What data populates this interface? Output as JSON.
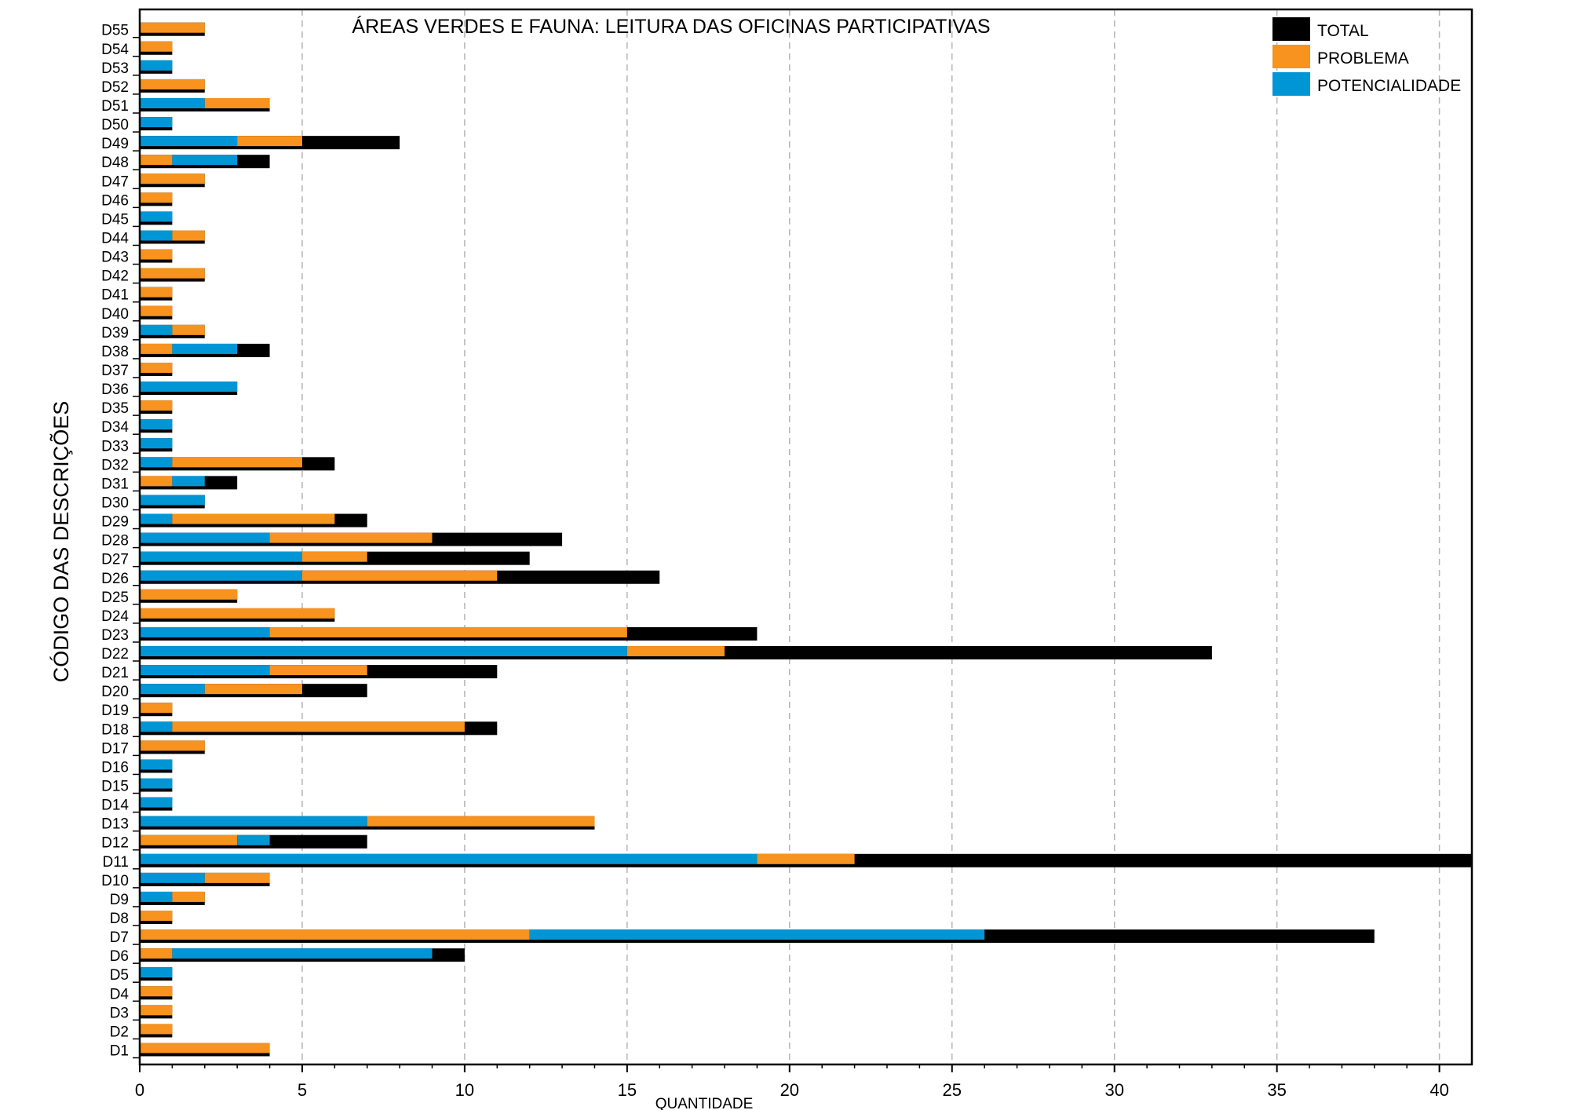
{
  "chart_data": {
    "type": "bar",
    "orientation": "horizontal",
    "title": "ÁREAS VERDES E FAUNA: LEITURA DAS OFICINAS PARTICIPATIVAS",
    "xlabel": "QUANTIDADE",
    "ylabel": "CÓDIGO DAS DESCRIÇÕES",
    "xlim": [
      0,
      41
    ],
    "xticks": [
      0,
      5,
      10,
      15,
      20,
      25,
      30,
      35,
      40
    ],
    "grid": "vertical-dashed",
    "legend_position": "top-right",
    "colors": {
      "TOTAL": "#000000",
      "PROBLEMA": "#F7931E",
      "POTENCIALIDADE": "#0096D6"
    },
    "legend": [
      "TOTAL",
      "PROBLEMA",
      "POTENCIALIDADE"
    ],
    "categories": [
      "D1",
      "D2",
      "D3",
      "D4",
      "D5",
      "D6",
      "D7",
      "D8",
      "D9",
      "D10",
      "D11",
      "D12",
      "D13",
      "D14",
      "D15",
      "D16",
      "D17",
      "D18",
      "D19",
      "D20",
      "D21",
      "D22",
      "D23",
      "D24",
      "D25",
      "D26",
      "D27",
      "D28",
      "D29",
      "D30",
      "D31",
      "D32",
      "D33",
      "D34",
      "D35",
      "D36",
      "D37",
      "D38",
      "D39",
      "D40",
      "D41",
      "D42",
      "D43",
      "D44",
      "D45",
      "D46",
      "D47",
      "D48",
      "D49",
      "D50",
      "D51",
      "D52",
      "D53",
      "D54",
      "D55"
    ],
    "series": [
      {
        "name": "TOTAL",
        "values": [
          4,
          1,
          1,
          1,
          1,
          10,
          38,
          1,
          2,
          4,
          41,
          7,
          14,
          1,
          1,
          1,
          2,
          11,
          1,
          7,
          11,
          33,
          19,
          6,
          3,
          16,
          12,
          13,
          7,
          2,
          3,
          6,
          1,
          1,
          1,
          3,
          1,
          4,
          2,
          1,
          1,
          2,
          1,
          2,
          1,
          1,
          2,
          4,
          8,
          1,
          4,
          2,
          1,
          1,
          2
        ]
      },
      {
        "name": "PROBLEMA",
        "values": [
          4,
          1,
          1,
          1,
          0,
          1,
          12,
          1,
          1,
          2,
          3,
          3,
          7,
          0,
          0,
          0,
          2,
          9,
          1,
          3,
          3,
          3,
          11,
          6,
          3,
          6,
          2,
          5,
          5,
          0,
          1,
          4,
          0,
          0,
          1,
          0,
          1,
          1,
          1,
          1,
          1,
          2,
          1,
          1,
          0,
          1,
          2,
          1,
          2,
          0,
          2,
          2,
          0,
          1,
          2
        ]
      },
      {
        "name": "POTENCIALIDADE",
        "values": [
          0,
          0,
          0,
          0,
          1,
          8,
          14,
          0,
          1,
          2,
          19,
          1,
          7,
          1,
          1,
          1,
          0,
          1,
          0,
          2,
          4,
          15,
          4,
          0,
          0,
          5,
          5,
          4,
          1,
          2,
          1,
          1,
          1,
          1,
          0,
          3,
          0,
          2,
          1,
          0,
          0,
          0,
          0,
          1,
          1,
          0,
          0,
          2,
          3,
          1,
          2,
          0,
          1,
          0,
          0
        ]
      }
    ],
    "segment_order": {
      "D1": [
        "PROBLEMA"
      ],
      "D2": [
        "PROBLEMA"
      ],
      "D3": [
        "PROBLEMA"
      ],
      "D4": [
        "PROBLEMA"
      ],
      "D5": [
        "POTENCIALIDADE"
      ],
      "D6": [
        "PROBLEMA",
        "POTENCIALIDADE"
      ],
      "D7": [
        "PROBLEMA",
        "POTENCIALIDADE"
      ],
      "D8": [
        "PROBLEMA"
      ],
      "D9": [
        "POTENCIALIDADE",
        "PROBLEMA"
      ],
      "D10": [
        "POTENCIALIDADE",
        "PROBLEMA"
      ],
      "D11": [
        "POTENCIALIDADE",
        "PROBLEMA"
      ],
      "D12": [
        "PROBLEMA",
        "POTENCIALIDADE"
      ],
      "D13": [
        "POTENCIALIDADE",
        "PROBLEMA"
      ],
      "D14": [
        "POTENCIALIDADE"
      ],
      "D15": [
        "POTENCIALIDADE"
      ],
      "D16": [
        "POTENCIALIDADE"
      ],
      "D17": [
        "PROBLEMA"
      ],
      "D18": [
        "POTENCIALIDADE",
        "PROBLEMA"
      ],
      "D19": [
        "PROBLEMA"
      ],
      "D20": [
        "POTENCIALIDADE",
        "PROBLEMA"
      ],
      "D21": [
        "POTENCIALIDADE",
        "PROBLEMA"
      ],
      "D22": [
        "POTENCIALIDADE",
        "PROBLEMA"
      ],
      "D23": [
        "POTENCIALIDADE",
        "PROBLEMA"
      ],
      "D24": [
        "PROBLEMA"
      ],
      "D25": [
        "PROBLEMA"
      ],
      "D26": [
        "POTENCIALIDADE",
        "PROBLEMA"
      ],
      "D27": [
        "POTENCIALIDADE",
        "PROBLEMA"
      ],
      "D28": [
        "POTENCIALIDADE",
        "PROBLEMA"
      ],
      "D29": [
        "POTENCIALIDADE",
        "PROBLEMA"
      ],
      "D30": [
        "POTENCIALIDADE"
      ],
      "D31": [
        "PROBLEMA",
        "POTENCIALIDADE"
      ],
      "D32": [
        "POTENCIALIDADE",
        "PROBLEMA"
      ],
      "D33": [
        "POTENCIALIDADE"
      ],
      "D34": [
        "POTENCIALIDADE"
      ],
      "D35": [
        "PROBLEMA"
      ],
      "D36": [
        "POTENCIALIDADE"
      ],
      "D37": [
        "PROBLEMA"
      ],
      "D38": [
        "PROBLEMA",
        "POTENCIALIDADE"
      ],
      "D39": [
        "POTENCIALIDADE",
        "PROBLEMA"
      ],
      "D40": [
        "PROBLEMA"
      ],
      "D41": [
        "PROBLEMA"
      ],
      "D42": [
        "PROBLEMA"
      ],
      "D43": [
        "PROBLEMA"
      ],
      "D44": [
        "POTENCIALIDADE",
        "PROBLEMA"
      ],
      "D45": [
        "POTENCIALIDADE"
      ],
      "D46": [
        "PROBLEMA"
      ],
      "D47": [
        "PROBLEMA"
      ],
      "D48": [
        "PROBLEMA",
        "POTENCIALIDADE"
      ],
      "D49": [
        "POTENCIALIDADE",
        "PROBLEMA"
      ],
      "D50": [
        "POTENCIALIDADE"
      ],
      "D51": [
        "POTENCIALIDADE",
        "PROBLEMA"
      ],
      "D52": [
        "PROBLEMA"
      ],
      "D53": [
        "POTENCIALIDADE"
      ],
      "D54": [
        "PROBLEMA"
      ],
      "D55": [
        "PROBLEMA"
      ]
    }
  }
}
